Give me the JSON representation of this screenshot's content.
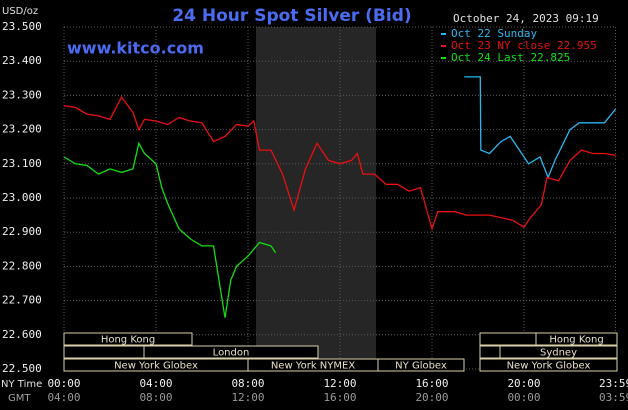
{
  "chart_data": {
    "type": "line",
    "title": "24 Hour Spot Silver (Bid)",
    "subtitle": "October 24, 2023 09:19",
    "ylabel": "USD/oz",
    "annotation": "www.kitco.com",
    "xlabel": "NY Time",
    "gmt_label": "GMT",
    "xlim": [
      0,
      24
    ],
    "ylim": [
      22.5,
      23.5
    ],
    "yticks": [
      {
        "value": 22.5,
        "label": "22.500"
      },
      {
        "value": 22.6,
        "label": "22.600"
      },
      {
        "value": 22.7,
        "label": "22.700"
      },
      {
        "value": 22.8,
        "label": "22.800"
      },
      {
        "value": 22.9,
        "label": "22.900"
      },
      {
        "value": 23.0,
        "label": "23.000"
      },
      {
        "value": 23.1,
        "label": "23.100"
      },
      {
        "value": 23.2,
        "label": "23.200"
      },
      {
        "value": 23.3,
        "label": "23.300"
      },
      {
        "value": 23.4,
        "label": "23.400"
      },
      {
        "value": 23.5,
        "label": "23.500"
      }
    ],
    "xticks": [
      {
        "value": 0,
        "label": "00:00"
      },
      {
        "value": 4,
        "label": "04:00"
      },
      {
        "value": 8,
        "label": "08:00"
      },
      {
        "value": 12,
        "label": "12:00"
      },
      {
        "value": 16,
        "label": "16:00"
      },
      {
        "value": 20,
        "label": "20:00"
      },
      {
        "value": 23.98,
        "label": "23:59"
      }
    ],
    "gmt_ticks": [
      {
        "value": 0,
        "label": "04:00"
      },
      {
        "value": 4,
        "label": "08:00"
      },
      {
        "value": 8,
        "label": "12:00"
      },
      {
        "value": 12,
        "label": "16:00"
      },
      {
        "value": 16,
        "label": "20:00"
      },
      {
        "value": 20,
        "label": "00:00"
      },
      {
        "value": 23.98,
        "label": "03:59"
      }
    ],
    "grid": true,
    "sessions": [
      "Hong Kong",
      "Hong Kong",
      "London",
      "Sydney",
      "New York Globex",
      "New York NYMEX",
      "NY Globex",
      "New York Globex"
    ],
    "series": [
      {
        "name": "Oct 22 Sunday",
        "color": "#28b8f0",
        "x": [
          17.4,
          18.1,
          18.12,
          18.5,
          19.0,
          19.4,
          19.8,
          20.2,
          20.7,
          21.05,
          21.35,
          22.0,
          22.4,
          22.9,
          23.5,
          23.98
        ],
        "values": [
          23.354,
          23.354,
          23.14,
          23.13,
          23.165,
          23.18,
          23.14,
          23.1,
          23.12,
          23.06,
          23.11,
          23.2,
          23.22,
          23.22,
          23.22,
          23.26
        ]
      },
      {
        "name": "Oct 23 NY close 22.955",
        "color": "#e81010",
        "x": [
          0,
          0.5,
          1,
          1.5,
          2,
          2.5,
          3,
          3.25,
          3.5,
          4,
          4.5,
          5,
          5.5,
          6,
          6.5,
          7,
          7.5,
          8,
          8.25,
          8.5,
          9,
          9.5,
          10,
          10.5,
          11,
          11.5,
          12,
          12.5,
          12.75,
          13,
          13.5,
          14,
          14.5,
          15,
          15.5,
          16,
          16.25,
          17,
          17.5,
          18.5,
          19.5,
          20,
          20.25,
          20.75,
          21,
          21.5,
          22,
          22.5,
          23,
          23.5,
          23.98
        ],
        "values": [
          23.27,
          23.265,
          23.245,
          23.24,
          23.23,
          23.295,
          23.25,
          23.2,
          23.23,
          23.225,
          23.215,
          23.235,
          23.225,
          23.22,
          23.165,
          23.18,
          23.215,
          23.21,
          23.225,
          23.14,
          23.14,
          23.07,
          22.965,
          23.085,
          23.16,
          23.11,
          23.1,
          23.11,
          23.13,
          23.07,
          23.07,
          23.04,
          23.04,
          23.02,
          23.03,
          22.91,
          22.96,
          22.96,
          22.95,
          22.95,
          22.935,
          22.915,
          22.94,
          22.98,
          23.06,
          23.05,
          23.11,
          23.14,
          23.13,
          23.13,
          23.125
        ]
      },
      {
        "name": "Oct 24 Last 22.825",
        "color": "#10e010",
        "x": [
          0,
          0.5,
          1,
          1.5,
          2,
          2.5,
          3,
          3.25,
          3.5,
          4,
          4.25,
          4.5,
          5,
          5.5,
          6,
          6.5,
          7,
          7.25,
          7.5,
          8,
          8.5,
          9,
          9.2
        ],
        "values": [
          23.12,
          23.1,
          23.095,
          23.07,
          23.085,
          23.075,
          23.085,
          23.16,
          23.13,
          23.1,
          23.03,
          22.985,
          22.91,
          22.88,
          22.86,
          22.86,
          22.65,
          22.76,
          22.8,
          22.83,
          22.87,
          22.86,
          22.84
        ]
      }
    ]
  }
}
